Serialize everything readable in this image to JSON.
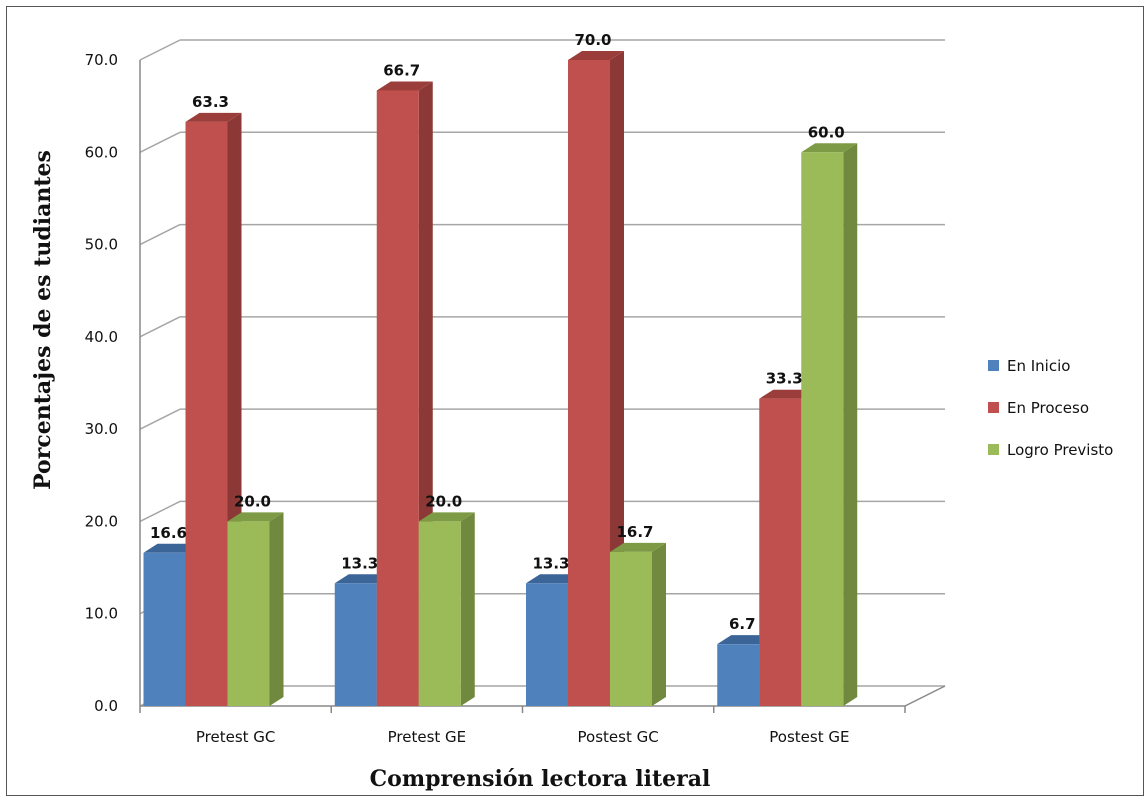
{
  "chart_data": {
    "type": "bar",
    "categories": [
      "Pretest GC",
      "Pretest GE",
      "Postest GC",
      "Postest GE"
    ],
    "series": [
      {
        "name": "En Inicio",
        "values": [
          16.6,
          13.3,
          13.3,
          6.7
        ]
      },
      {
        "name": "En Proceso",
        "values": [
          63.3,
          66.7,
          70.0,
          33.3
        ]
      },
      {
        "name": "Logro Previsto",
        "values": [
          20.0,
          20.0,
          16.7,
          60.0
        ]
      }
    ],
    "data_labels": [
      [
        "16.6",
        "13.3",
        "13.3",
        "6.7"
      ],
      [
        "63.3",
        "66.7",
        "70.0",
        "33.3"
      ],
      [
        "20.0",
        "20.0",
        "16.7",
        "60.0"
      ]
    ],
    "yticks": [
      "0.0",
      "10.0",
      "20.0",
      "30.0",
      "40.0",
      "50.0",
      "60.0",
      "70.0"
    ],
    "ylim": [
      0,
      70
    ],
    "xlabel": "Comprensión lectora literal",
    "ylabel": "Porcentajes de es tudiantes",
    "grid": true,
    "legend_position": "right",
    "colors": {
      "En Inicio": {
        "front": "#4F81BD",
        "side": "#385D8A",
        "top": "#3B6497"
      },
      "En Proceso": {
        "front": "#C0504D",
        "side": "#8C3836",
        "top": "#9B3E3B"
      },
      "Logro Previsto": {
        "front": "#9BBB59",
        "side": "#71893F",
        "top": "#7D9B44"
      }
    }
  }
}
